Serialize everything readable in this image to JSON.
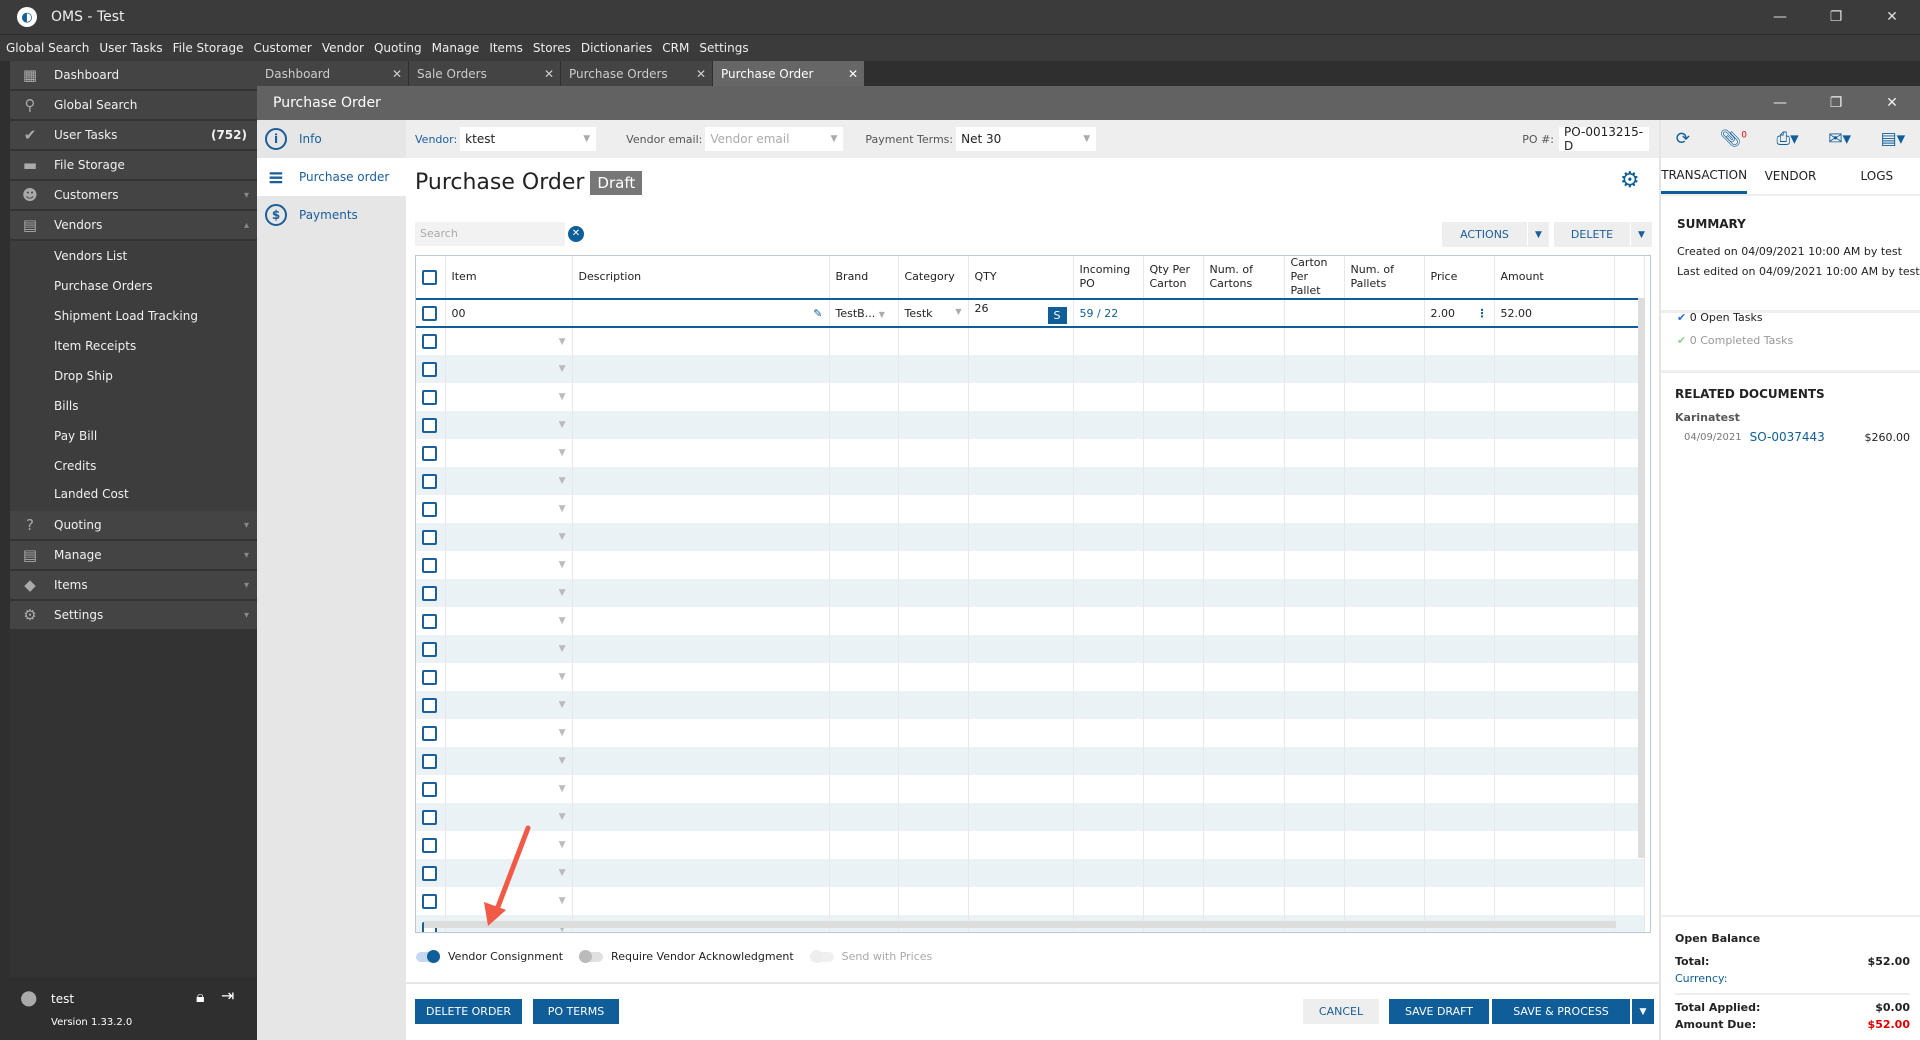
{
  "app": {
    "title": "OMS - Test",
    "min": "—",
    "max": "❐",
    "close": "✕"
  },
  "menu": [
    "Global Search",
    "User Tasks",
    "File Storage",
    "Customer",
    "Vendor",
    "Quoting",
    "Manage",
    "Items",
    "Stores",
    "Dictionaries",
    "CRM",
    "Settings"
  ],
  "sidebar": {
    "top": [
      {
        "label": "Dashboard",
        "icon": "▦"
      },
      {
        "label": "Global Search",
        "icon": "⚲"
      },
      {
        "label": "User Tasks",
        "icon": "✔",
        "count": "(752)"
      },
      {
        "label": "File Storage",
        "icon": "▬"
      },
      {
        "label": "Customers",
        "icon": "☻",
        "chev": "▾"
      },
      {
        "label": "Vendors",
        "icon": "▤",
        "chev": "▴"
      }
    ],
    "vendors_sub": [
      "Vendors List",
      "Purchase Orders",
      "Shipment Load Tracking",
      "Item Receipts",
      "Drop Ship",
      "Bills",
      "Pay Bill",
      "Credits",
      "Landed Cost"
    ],
    "bottom": [
      {
        "label": "Quoting",
        "icon": "?"
      },
      {
        "label": "Manage",
        "icon": "▤"
      },
      {
        "label": "Items",
        "icon": "◆"
      },
      {
        "label": "Settings",
        "icon": "⚙"
      }
    ],
    "user": "test",
    "version": "Version 1.33.2.0"
  },
  "tabs": [
    {
      "label": "Dashboard"
    },
    {
      "label": "Sale Orders"
    },
    {
      "label": "Purchase Orders"
    },
    {
      "label": "Purchase Order",
      "active": true
    }
  ],
  "window": {
    "title": "Purchase Order"
  },
  "leftnav": [
    {
      "label": "Info",
      "icon": "i"
    },
    {
      "label": "Purchase order",
      "icon": "≡"
    },
    {
      "label": "Payments",
      "icon": "$"
    }
  ],
  "toolbar": {
    "vendor_label": "Vendor:",
    "vendor": "ktest",
    "email_label": "Vendor email:",
    "email_placeholder": "Vendor email",
    "terms_label": "Payment Terms:",
    "terms": "Net 30",
    "po_label": "PO #:",
    "po": "PO-0013215-D",
    "attach_count": "0"
  },
  "main": {
    "title": "Purchase Order",
    "status": "Draft",
    "search_placeholder": "Search",
    "actions": "ACTIONS",
    "delete": "DELETE"
  },
  "grid": {
    "columns": [
      "Item",
      "Description",
      "Brand",
      "Category",
      "QTY",
      "Incoming PO",
      "Qty Per Carton",
      "Num. of Cartons",
      "Carton Per Pallet",
      "Num. of Pallets",
      "Price",
      "Amount"
    ],
    "rows": [
      {
        "item": "00",
        "description": "",
        "brand": "TestB...",
        "category": "Testk",
        "qty": "26",
        "s": "S",
        "incoming": "59 / 22",
        "price": "2.00",
        "amount": "52.00"
      }
    ],
    "empty_rows": 22
  },
  "toggles": [
    {
      "label": "Vendor Consignment",
      "on": true
    },
    {
      "label": "Require Vendor Acknowledgment",
      "on": false
    },
    {
      "label": "Send with Prices",
      "on": false,
      "disabled": true
    }
  ],
  "footer": {
    "delete_order": "DELETE ORDER",
    "po_terms": "PO TERMS",
    "cancel": "CANCEL",
    "save_draft": "SAVE DRAFT",
    "save_process": "SAVE & PROCESS"
  },
  "right": {
    "tabs": [
      "TRANSACTION",
      "VENDOR",
      "LOGS"
    ],
    "summary_title": "SUMMARY",
    "created": "Created on 04/09/2021 10:00 AM by test",
    "edited": "Last edited on 04/09/2021 10:00 AM by test",
    "open_tasks": "0 Open Tasks",
    "completed_tasks": "0 Completed Tasks",
    "related_title": "RELATED DOCUMENTS",
    "related_customer": "Karinatest",
    "related_date": "04/09/2021",
    "related_doc": "SO-0037443",
    "related_amount": "$260.00",
    "open_balance": "Open Balance",
    "total_label": "Total:",
    "total": "$52.00",
    "currency_label": "Currency:",
    "applied_label": "Total Applied:",
    "applied": "$0.00",
    "due_label": "Amount Due:",
    "due": "$52.00"
  },
  "colors": {
    "accent": "#0f5e99",
    "annotation": "#f05a47",
    "due": "#e00000"
  }
}
